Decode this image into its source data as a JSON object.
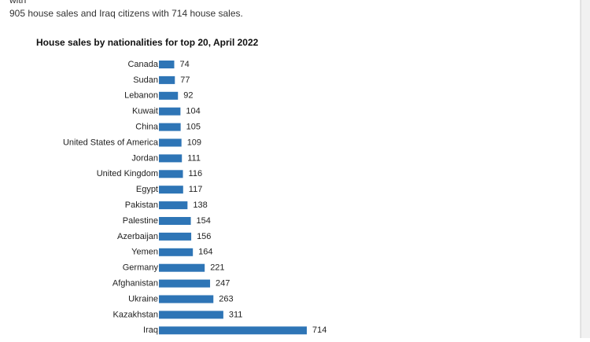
{
  "intro": [
    "with",
    "905 house sales and Iraq citizens with 714 house sales."
  ],
  "chart_data": {
    "type": "hbar",
    "title": "House sales by nationalities for top 20, April 2022",
    "categories": [
      "Canada",
      "Sudan",
      "Lebanon",
      "Kuwait",
      "China",
      "United States of America",
      "Jordan",
      "United Kingdom",
      "Egypt",
      "Pakistan",
      "Palestine",
      "Azerbaijan",
      "Yemen",
      "Germany",
      "Afghanistan",
      "Ukraine",
      "Kazakhstan",
      "Iraq"
    ],
    "values": [
      74,
      77,
      92,
      104,
      105,
      109,
      111,
      116,
      117,
      138,
      154,
      156,
      164,
      221,
      247,
      263,
      311,
      714
    ],
    "color": "#2e75b6"
  }
}
